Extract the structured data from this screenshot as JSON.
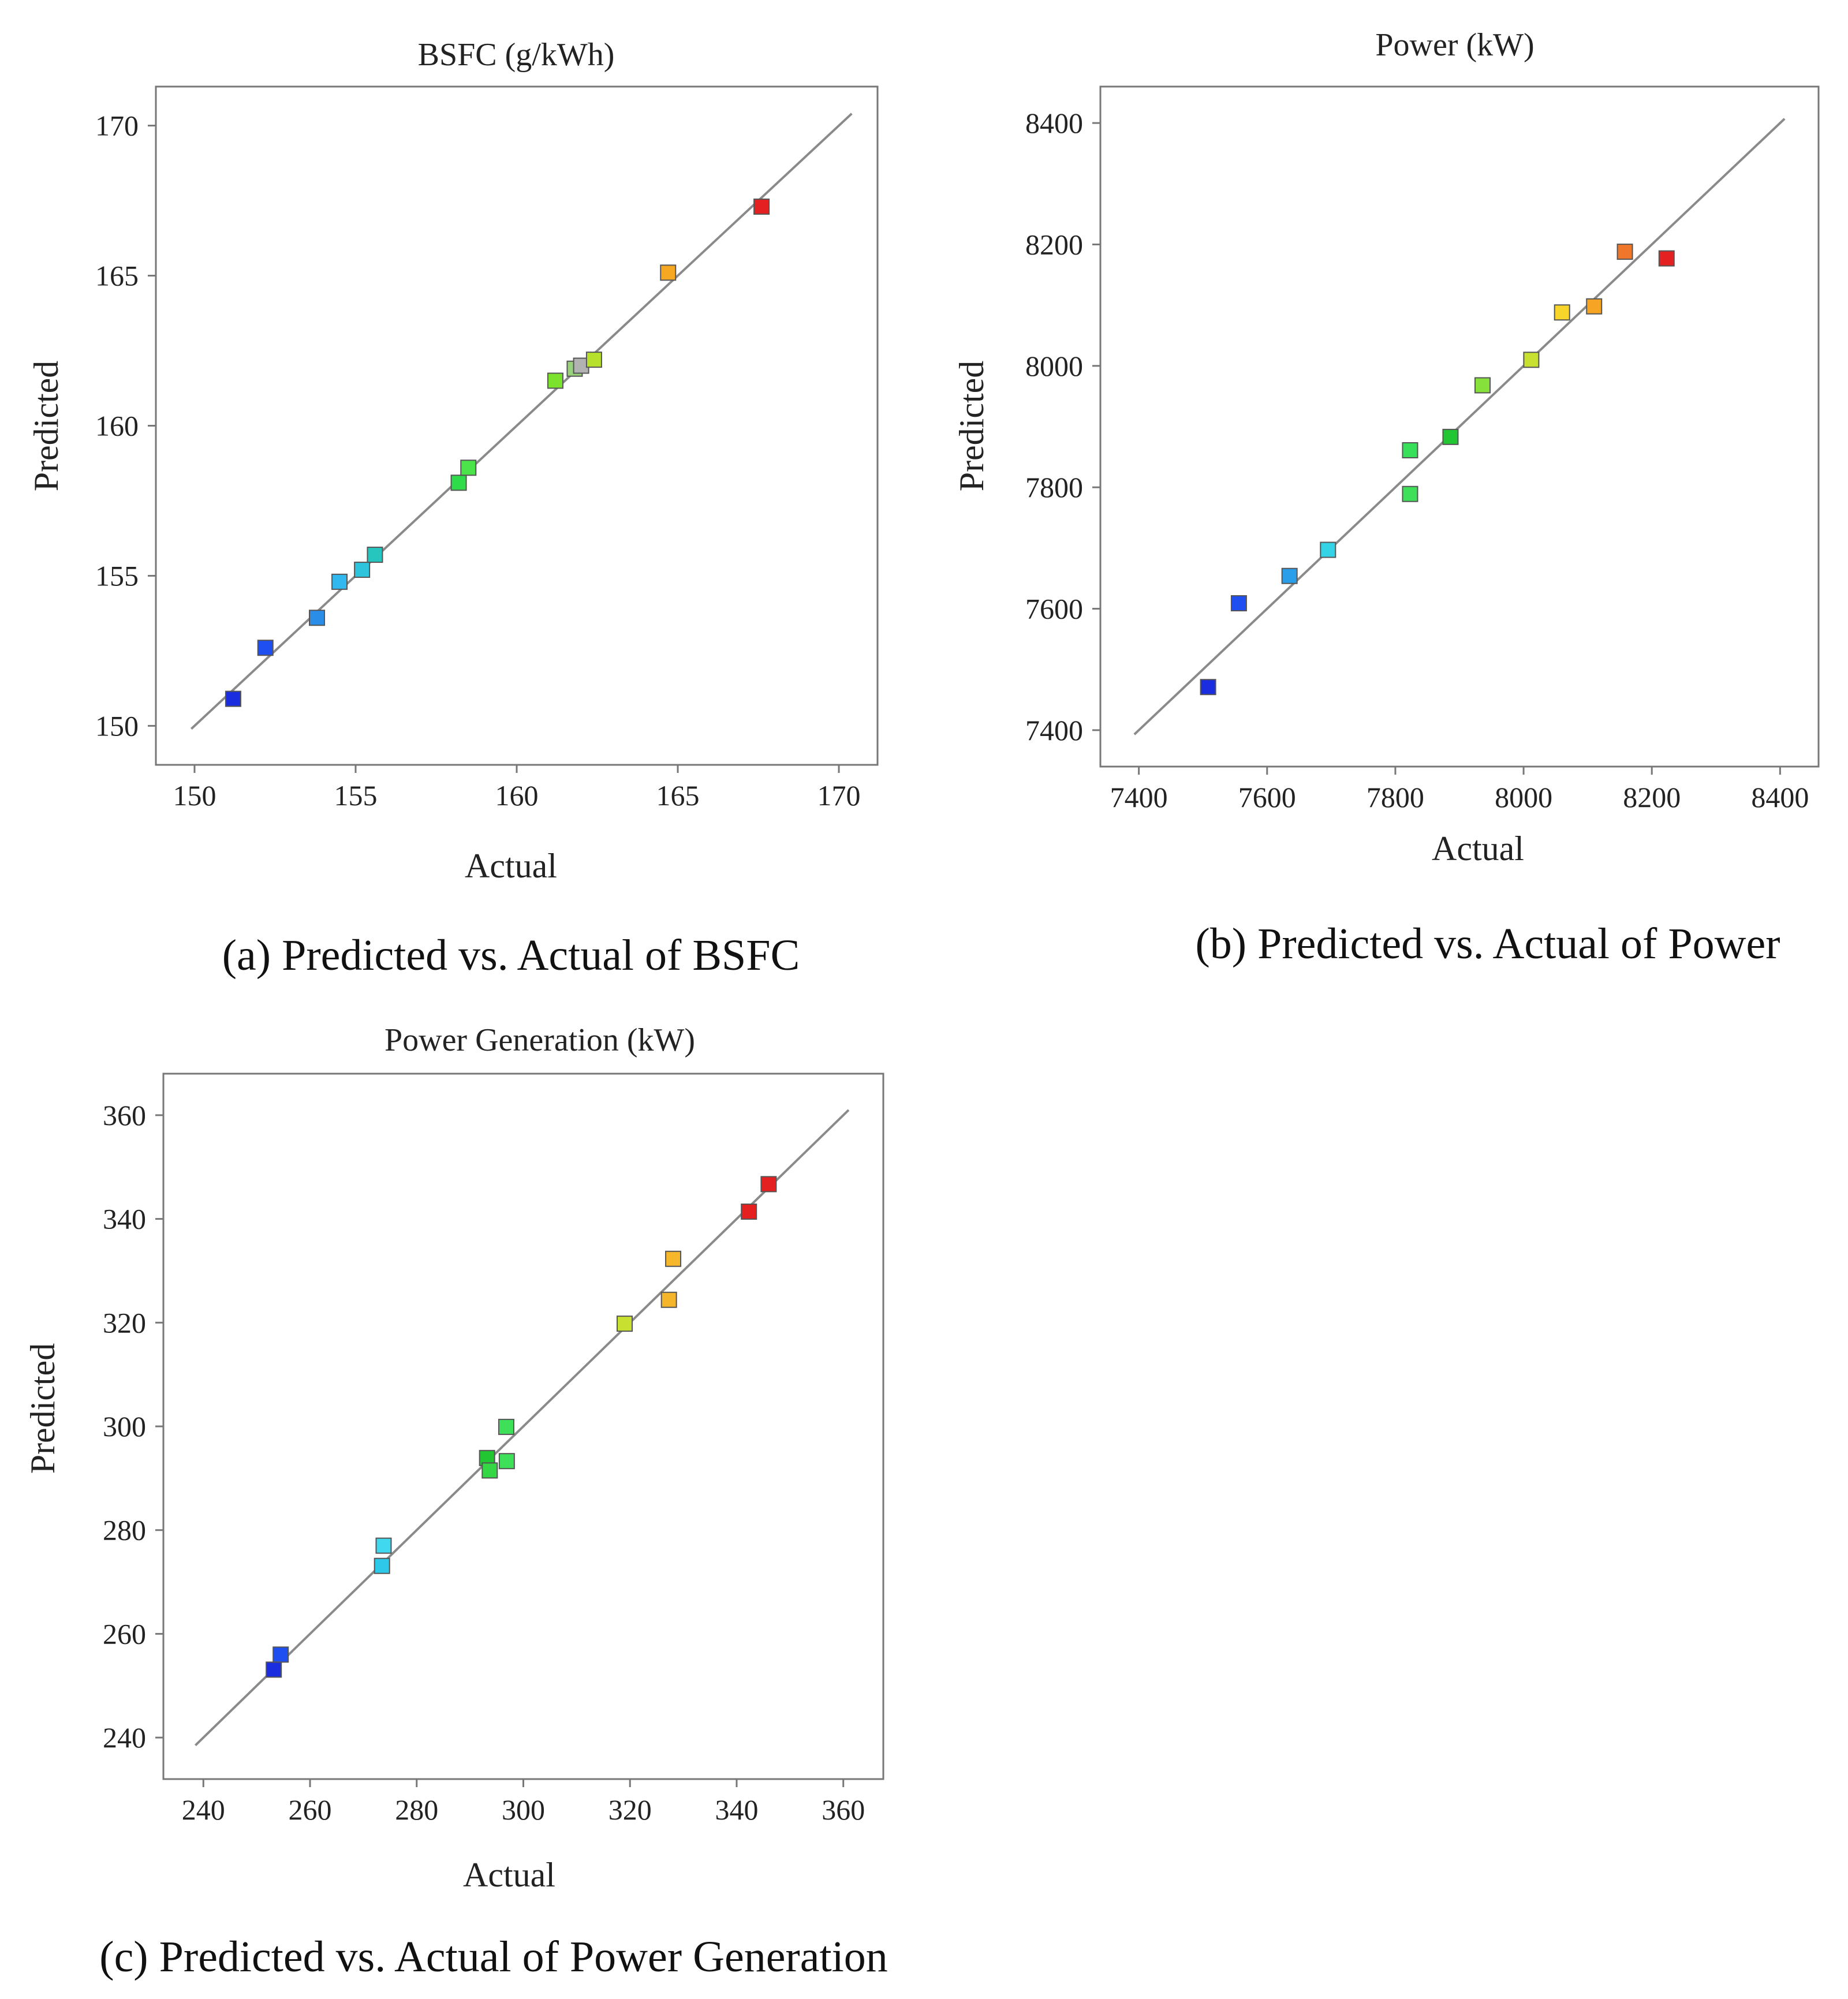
{
  "chart_data": [
    {
      "id": "a",
      "type": "scatter",
      "title": "BSFC (g/kWh)",
      "xlabel": "Actual",
      "ylabel": "Predicted",
      "caption": "(a) Predicted vs. Actual of BSFC",
      "xlim": [
        148.8,
        171.2
      ],
      "ylim": [
        148.7,
        171.3
      ],
      "xticks": [
        150,
        155,
        160,
        165,
        170
      ],
      "yticks": [
        150,
        155,
        160,
        165,
        170
      ],
      "diagonal": [
        149.9,
        170.4
      ],
      "points": [
        {
          "x": 151.2,
          "y": 150.9,
          "color": "#1a2ee0"
        },
        {
          "x": 152.2,
          "y": 152.6,
          "color": "#1f4ff0"
        },
        {
          "x": 153.8,
          "y": 153.6,
          "color": "#2a8ee8"
        },
        {
          "x": 154.5,
          "y": 154.8,
          "color": "#31b8ee"
        },
        {
          "x": 155.2,
          "y": 155.2,
          "color": "#2ec4dc"
        },
        {
          "x": 155.6,
          "y": 155.7,
          "color": "#26c6bf"
        },
        {
          "x": 158.2,
          "y": 158.1,
          "color": "#2edc4a"
        },
        {
          "x": 158.5,
          "y": 158.6,
          "color": "#4ce24a"
        },
        {
          "x": 161.2,
          "y": 161.5,
          "color": "#7be32e"
        },
        {
          "x": 161.8,
          "y": 161.9,
          "color": "#9ad27c"
        },
        {
          "x": 162.0,
          "y": 162.0,
          "color": "#b2b2b2"
        },
        {
          "x": 162.4,
          "y": 162.2,
          "color": "#b6e02c"
        },
        {
          "x": 164.7,
          "y": 165.1,
          "color": "#f7a823"
        },
        {
          "x": 167.6,
          "y": 167.3,
          "color": "#e42020"
        }
      ]
    },
    {
      "id": "b",
      "type": "scatter",
      "title": "Power (kW)",
      "xlabel": "Actual",
      "ylabel": "Predicted",
      "caption": "(b) Predicted vs. Actual of Power",
      "xlim": [
        7340,
        8460
      ],
      "ylim": [
        7340,
        8460
      ],
      "xticks": [
        7400,
        7600,
        7800,
        8000,
        8200,
        8400
      ],
      "yticks": [
        7400,
        7600,
        7800,
        8000,
        8200,
        8400
      ],
      "diagonal": [
        7393,
        8407
      ],
      "points": [
        {
          "x": 7508,
          "y": 7471,
          "color": "#1a2ee0"
        },
        {
          "x": 7556,
          "y": 7609,
          "color": "#1f4ff0"
        },
        {
          "x": 7635,
          "y": 7654,
          "color": "#2a9ee8"
        },
        {
          "x": 7695,
          "y": 7697,
          "color": "#34d4e6"
        },
        {
          "x": 7823,
          "y": 7861,
          "color": "#38e05a"
        },
        {
          "x": 7823,
          "y": 7789,
          "color": "#3ee05a"
        },
        {
          "x": 7886,
          "y": 7883,
          "color": "#22c632"
        },
        {
          "x": 7936,
          "y": 7968,
          "color": "#86e23a"
        },
        {
          "x": 8012,
          "y": 8010,
          "color": "#c8e030"
        },
        {
          "x": 8060,
          "y": 8088,
          "color": "#f7d52a"
        },
        {
          "x": 8110,
          "y": 8098,
          "color": "#f5a423"
        },
        {
          "x": 8158,
          "y": 8188,
          "color": "#f0762a"
        },
        {
          "x": 8223,
          "y": 8177,
          "color": "#e42020"
        }
      ]
    },
    {
      "id": "c",
      "type": "scatter",
      "title": "Power Generation (kW)",
      "xlabel": "Actual",
      "ylabel": "Predicted",
      "caption": "(c) Predicted vs. Actual of Power Generation",
      "xlim": [
        232.5,
        367.5
      ],
      "ylim": [
        232,
        368
      ],
      "xticks": [
        240,
        260,
        280,
        300,
        320,
        340,
        360
      ],
      "yticks": [
        240,
        260,
        280,
        300,
        320,
        340,
        360
      ],
      "diagonal": [
        238.5,
        361.0
      ],
      "points": [
        {
          "x": 253.2,
          "y": 253.1,
          "color": "#1a2ee0"
        },
        {
          "x": 254.5,
          "y": 256.0,
          "color": "#1f4ff0"
        },
        {
          "x": 273.5,
          "y": 273.1,
          "color": "#2ec8ea"
        },
        {
          "x": 273.8,
          "y": 277.0,
          "color": "#40d8ee"
        },
        {
          "x": 293.2,
          "y": 293.9,
          "color": "#22c632"
        },
        {
          "x": 293.7,
          "y": 291.5,
          "color": "#34d844"
        },
        {
          "x": 296.8,
          "y": 299.9,
          "color": "#3ee05a"
        },
        {
          "x": 296.9,
          "y": 293.3,
          "color": "#3ee05a"
        },
        {
          "x": 319.0,
          "y": 319.8,
          "color": "#c8e030"
        },
        {
          "x": 327.3,
          "y": 324.4,
          "color": "#f5b52a"
        },
        {
          "x": 328.1,
          "y": 332.3,
          "color": "#f7b72a"
        },
        {
          "x": 342.3,
          "y": 341.4,
          "color": "#e42020"
        },
        {
          "x": 346.0,
          "y": 346.7,
          "color": "#e42020"
        }
      ]
    }
  ]
}
